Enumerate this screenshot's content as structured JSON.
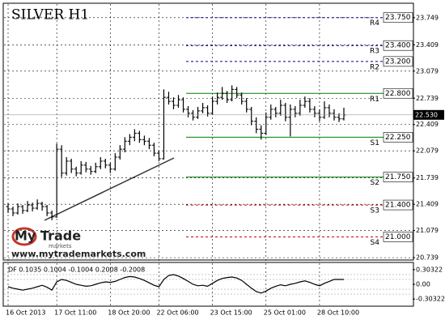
{
  "chart_data": {
    "type": "ohlc",
    "title": "SILVER H1",
    "categories": [
      "16 Oct 2013",
      null,
      null,
      null,
      null,
      null,
      null,
      null,
      null,
      null,
      "17 Oct 11:00",
      null,
      null,
      null,
      null,
      null,
      null,
      null,
      null,
      null,
      null,
      "18 Oct 20:00",
      null,
      null,
      null,
      null,
      null,
      null,
      null,
      null,
      null,
      "22 Oct 06:00",
      null,
      null,
      null,
      null,
      null,
      null,
      null,
      null,
      null,
      null,
      "23 Oct 15:00",
      null,
      null,
      null,
      null,
      null,
      null,
      null,
      null,
      null,
      null,
      "25 Oct 01:00",
      null,
      null,
      null,
      null,
      null,
      null,
      null,
      null,
      null,
      null,
      "28 Oct 10:00",
      null,
      null,
      null,
      null,
      null
    ],
    "ohlc": [
      [
        21.38,
        21.42,
        21.3,
        21.35
      ],
      [
        21.35,
        21.38,
        21.26,
        21.3
      ],
      [
        21.3,
        21.42,
        21.28,
        21.38
      ],
      [
        21.38,
        21.4,
        21.29,
        21.33
      ],
      [
        21.33,
        21.45,
        21.31,
        21.4
      ],
      [
        21.4,
        21.43,
        21.32,
        21.36
      ],
      [
        21.36,
        21.47,
        21.34,
        21.42
      ],
      [
        21.42,
        21.44,
        21.33,
        21.38
      ],
      [
        21.38,
        21.4,
        21.26,
        21.3
      ],
      [
        21.3,
        21.33,
        21.21,
        21.25
      ],
      [
        21.25,
        22.17,
        21.24,
        22.1
      ],
      [
        22.1,
        22.15,
        21.75,
        21.8
      ],
      [
        21.8,
        22.0,
        21.77,
        21.95
      ],
      [
        21.95,
        21.98,
        21.8,
        21.85
      ],
      [
        21.85,
        21.88,
        21.76,
        21.8
      ],
      [
        21.8,
        21.95,
        21.78,
        21.9
      ],
      [
        21.9,
        21.94,
        21.81,
        21.85
      ],
      [
        21.85,
        21.89,
        21.78,
        21.82
      ],
      [
        21.82,
        21.93,
        21.8,
        21.88
      ],
      [
        21.88,
        22.0,
        21.85,
        21.95
      ],
      [
        21.95,
        21.98,
        21.86,
        21.9
      ],
      [
        21.9,
        21.93,
        21.8,
        21.85
      ],
      [
        21.85,
        22.05,
        21.83,
        22.0
      ],
      [
        22.0,
        22.15,
        21.97,
        22.1
      ],
      [
        22.1,
        22.25,
        22.06,
        22.2
      ],
      [
        22.2,
        22.29,
        22.15,
        22.25
      ],
      [
        22.25,
        22.35,
        22.2,
        22.3
      ],
      [
        22.3,
        22.33,
        22.18,
        22.22
      ],
      [
        22.22,
        22.27,
        22.15,
        22.2
      ],
      [
        22.2,
        22.24,
        22.1,
        22.15
      ],
      [
        22.15,
        22.18,
        22.01,
        22.05
      ],
      [
        22.05,
        22.08,
        21.95,
        21.98
      ],
      [
        21.98,
        22.85,
        21.97,
        22.75
      ],
      [
        22.75,
        22.82,
        22.66,
        22.7
      ],
      [
        22.7,
        22.75,
        22.6,
        22.65
      ],
      [
        22.65,
        22.78,
        22.62,
        22.72
      ],
      [
        22.72,
        22.75,
        22.56,
        22.6
      ],
      [
        22.6,
        22.64,
        22.5,
        22.55
      ],
      [
        22.55,
        22.59,
        22.46,
        22.5
      ],
      [
        22.5,
        22.63,
        22.48,
        22.58
      ],
      [
        22.58,
        22.68,
        22.55,
        22.62
      ],
      [
        22.62,
        22.65,
        22.51,
        22.55
      ],
      [
        22.55,
        22.76,
        22.53,
        22.7
      ],
      [
        22.7,
        22.81,
        22.66,
        22.75
      ],
      [
        22.75,
        22.88,
        22.72,
        22.8
      ],
      [
        22.8,
        22.83,
        22.68,
        22.72
      ],
      [
        22.72,
        22.9,
        22.7,
        22.85
      ],
      [
        22.85,
        22.88,
        22.74,
        22.78
      ],
      [
        22.78,
        22.81,
        22.66,
        22.7
      ],
      [
        22.7,
        22.74,
        22.56,
        22.6
      ],
      [
        22.6,
        22.63,
        22.4,
        22.45
      ],
      [
        22.45,
        22.5,
        22.3,
        22.35
      ],
      [
        22.35,
        22.4,
        22.22,
        22.3
      ],
      [
        22.3,
        22.56,
        22.28,
        22.5
      ],
      [
        22.5,
        22.66,
        22.47,
        22.6
      ],
      [
        22.6,
        22.63,
        22.5,
        22.55
      ],
      [
        22.55,
        22.72,
        22.52,
        22.65
      ],
      [
        22.65,
        22.68,
        22.45,
        22.5
      ],
      [
        22.5,
        22.66,
        22.26,
        22.6
      ],
      [
        22.6,
        22.64,
        22.5,
        22.55
      ],
      [
        22.55,
        22.72,
        22.52,
        22.65
      ],
      [
        22.65,
        22.76,
        22.62,
        22.7
      ],
      [
        22.7,
        22.74,
        22.56,
        22.6
      ],
      [
        22.6,
        22.64,
        22.5,
        22.55
      ],
      [
        22.55,
        22.6,
        22.45,
        22.5
      ],
      [
        22.5,
        22.7,
        22.48,
        22.62
      ],
      [
        22.62,
        22.66,
        22.5,
        22.55
      ],
      [
        22.55,
        22.6,
        22.46,
        22.5
      ],
      [
        22.5,
        22.55,
        22.44,
        22.48
      ],
      [
        22.48,
        22.62,
        22.46,
        22.53
      ]
    ],
    "color": "#000000",
    "ylim": [
      20.72,
      23.92
    ],
    "yticks": [
      23.749,
      23.409,
      23.079,
      22.739,
      22.409,
      22.079,
      21.739,
      21.409,
      21.079,
      20.739
    ],
    "grid": true,
    "last_price": {
      "value": 22.53,
      "label": "22.530"
    },
    "levels": [
      {
        "name": "R4",
        "value": 23.75,
        "label": "23.750",
        "color": "#000080"
      },
      {
        "name": "R3",
        "value": 23.4,
        "label": "23.400",
        "color": "#000080"
      },
      {
        "name": "R2",
        "value": 23.2,
        "label": "23.200",
        "color": "#000080"
      },
      {
        "name": "R1",
        "value": 22.8,
        "label": "22.800",
        "color": "#008000"
      },
      {
        "name": "S1",
        "value": 22.25,
        "label": "22.250",
        "color": "#008000"
      },
      {
        "name": "S2",
        "value": 21.75,
        "label": "21.750",
        "color": "#008000"
      },
      {
        "name": "S3",
        "value": 21.4,
        "label": "21.400",
        "color": "#cc0000"
      },
      {
        "name": "S4",
        "value": 21.0,
        "label": "21.000",
        "color": "#cc0000"
      }
    ],
    "indicator": {
      "label": "DF 0.1035 0.1004 -0.1004 0.2008 -0.2008",
      "values": [
        -0.05,
        -0.08,
        -0.1,
        -0.12,
        -0.1,
        -0.08,
        -0.05,
        -0.02,
        -0.06,
        -0.12,
        0.05,
        0.1,
        0.08,
        0.04,
        0.0,
        -0.02,
        -0.04,
        -0.03,
        0.0,
        0.03,
        0.05,
        0.04,
        0.06,
        0.1,
        0.14,
        0.16,
        0.15,
        0.12,
        0.08,
        0.03,
        -0.02,
        -0.05,
        0.1,
        0.18,
        0.2,
        0.17,
        0.12,
        0.06,
        0.0,
        -0.03,
        -0.02,
        -0.04,
        0.02,
        0.08,
        0.12,
        0.14,
        0.15,
        0.13,
        0.08,
        0.0,
        -0.08,
        -0.15,
        -0.18,
        -0.14,
        -0.08,
        -0.04,
        -0.01,
        -0.03,
        0.0,
        0.02,
        0.05,
        0.07,
        0.04,
        0.0,
        -0.03,
        0.02,
        0.06,
        0.1,
        0.1,
        0.1
      ],
      "color": "#000000",
      "levels": [
        0.1004,
        -0.1004,
        0.2008,
        -0.2008
      ],
      "ylim": [
        -0.4,
        0.4
      ],
      "yticks": [
        0.30322,
        {
          "value": 0,
          "label": "0.00"
        },
        -0.30322
      ]
    }
  },
  "logo": {
    "name": "My Trade",
    "sub": "markets",
    "url": "www.mytrademarkets.com"
  }
}
